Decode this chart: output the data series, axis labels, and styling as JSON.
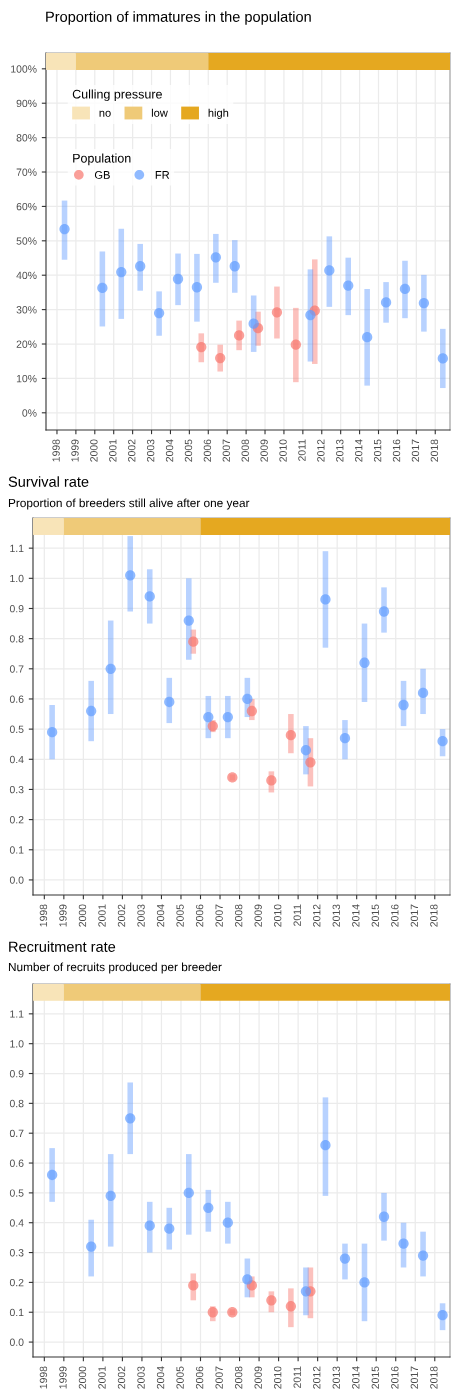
{
  "chart_data": [
    {
      "type": "scatter",
      "title": "Proportion of immatures in the population",
      "legend": "top left",
      "legend_title": "Population",
      "annotations": [
        "Culling pressure"
      ],
      "grid": true,
      "marker": "circle",
      "xlim": [
        1997.42,
        2018.78
      ],
      "xticks": [
        1998,
        1999,
        2000,
        2001,
        2002,
        2003,
        2004,
        2005,
        2006,
        2007,
        2008,
        2009,
        2010,
        2011,
        2012,
        2013,
        2014,
        2015,
        2016,
        2017,
        2018
      ],
      "ylim": [
        -5,
        104.6
      ],
      "yticks": [
        {
          "value": 0,
          "label": "0%"
        },
        {
          "value": 10,
          "label": "10%"
        },
        {
          "value": 20,
          "label": "20%"
        },
        {
          "value": 30,
          "label": "30%"
        },
        {
          "value": 40,
          "label": "40%"
        },
        {
          "value": 50,
          "label": "50%"
        },
        {
          "value": 60,
          "label": "60%"
        },
        {
          "value": 70,
          "label": "70%"
        },
        {
          "value": 80,
          "label": "80%"
        },
        {
          "value": 90,
          "label": "90%"
        },
        {
          "value": 100,
          "label": "100%"
        }
      ],
      "bands": [
        {
          "axis": "x",
          "from": 1997.42,
          "to": 1999,
          "label": "no",
          "color": "#f8e4b8"
        },
        {
          "axis": "x",
          "from": 1999,
          "to": 2006,
          "label": "low",
          "color": "#efca78"
        },
        {
          "axis": "x",
          "from": 2006,
          "to": 2018.78,
          "label": "high",
          "color": "#e5a820"
        }
      ],
      "series": [
        {
          "name": "GB",
          "color": "#f8766d",
          "x": [
            2005.63,
            2006.63,
            2007.63,
            2008.63,
            2009.63,
            2010.63,
            2011.63
          ],
          "values": [
            19.1,
            15.9,
            22.5,
            24.6,
            29.2,
            19.8,
            29.7
          ],
          "errors": [
            [
              14.7,
              23.1
            ],
            [
              12.0,
              19.8
            ],
            [
              18.2,
              26.8
            ],
            [
              19.5,
              29.4
            ],
            [
              21.6,
              36.7
            ],
            [
              8.9,
              30.5
            ],
            [
              14.2,
              44.6
            ]
          ]
        },
        {
          "name": "FR",
          "color": "#619cff",
          "x": [
            1998.4,
            2000.4,
            2001.4,
            2002.4,
            2003.4,
            2004.4,
            2005.4,
            2006.4,
            2007.4,
            2008.4,
            2011.4,
            2012.4,
            2013.4,
            2014.4,
            2015.4,
            2016.4,
            2017.4,
            2018.4
          ],
          "values": [
            53.4,
            36.3,
            40.9,
            42.6,
            29.0,
            38.9,
            36.5,
            45.2,
            42.6,
            25.9,
            28.4,
            41.4,
            37.0,
            22.0,
            32.1,
            36.0,
            31.9,
            15.8
          ],
          "errors": [
            [
              44.5,
              61.7
            ],
            [
              25.1,
              46.9
            ],
            [
              27.3,
              53.5
            ],
            [
              35.5,
              49.1
            ],
            [
              22.4,
              35.3
            ],
            [
              31.3,
              46.3
            ],
            [
              26.5,
              46.2
            ],
            [
              37.8,
              52.0
            ],
            [
              34.9,
              50.2
            ],
            [
              17.7,
              34.1
            ],
            [
              14.9,
              41.7
            ],
            [
              30.8,
              51.3
            ],
            [
              28.4,
              45.1
            ],
            [
              7.9,
              36.0
            ],
            [
              26.2,
              38.0
            ],
            [
              27.5,
              44.2
            ],
            [
              23.6,
              40.1
            ],
            [
              7.2,
              24.4
            ]
          ]
        }
      ]
    },
    {
      "type": "scatter",
      "title": "Survival rate",
      "subtitle": "Proportion of breeders still alive after one year",
      "grid": true,
      "marker": "circle",
      "xlim": [
        1997.42,
        2018.78
      ],
      "xticks": [
        1998,
        1999,
        2000,
        2001,
        2002,
        2003,
        2004,
        2005,
        2006,
        2007,
        2008,
        2009,
        2010,
        2011,
        2012,
        2013,
        2014,
        2015,
        2016,
        2017,
        2018
      ],
      "ylim": [
        -0.05,
        1.2
      ],
      "yticks": [
        {
          "value": 0,
          "label": "0.0"
        },
        {
          "value": 0.1,
          "label": "0.1"
        },
        {
          "value": 0.2,
          "label": "0.2"
        },
        {
          "value": 0.3,
          "label": "0.3"
        },
        {
          "value": 0.4,
          "label": "0.4"
        },
        {
          "value": 0.5,
          "label": "0.5"
        },
        {
          "value": 0.6,
          "label": "0.6"
        },
        {
          "value": 0.7,
          "label": "0.7"
        },
        {
          "value": 0.8,
          "label": "0.8"
        },
        {
          "value": 0.9,
          "label": "0.9"
        },
        {
          "value": 1,
          "label": "1.0"
        },
        {
          "value": 1.1,
          "label": "1.1"
        }
      ],
      "bands": [
        {
          "axis": "x",
          "from": 1997.42,
          "to": 1999,
          "color": "#f8e4b8"
        },
        {
          "axis": "x",
          "from": 1999,
          "to": 2006,
          "color": "#efca78"
        },
        {
          "axis": "x",
          "from": 2006,
          "to": 2018.78,
          "color": "#e5a820"
        }
      ],
      "series": [
        {
          "color": "#f8766d",
          "x": [
            2005.63,
            2006.63,
            2007.63,
            2008.63,
            2009.63,
            2010.63,
            2011.63
          ],
          "values": [
            0.79,
            0.51,
            0.34,
            0.56,
            0.33,
            0.48,
            0.39
          ],
          "errors": [
            [
              0.75,
              0.83
            ],
            [
              0.49,
              0.53
            ],
            [
              0.33,
              0.35
            ],
            [
              0.53,
              0.6
            ],
            [
              0.29,
              0.36
            ],
            [
              0.42,
              0.55
            ],
            [
              0.31,
              0.47
            ]
          ]
        },
        {
          "color": "#619cff",
          "x": [
            1998.4,
            2000.4,
            2001.4,
            2002.4,
            2003.4,
            2004.4,
            2005.4,
            2006.4,
            2007.4,
            2008.4,
            2011.4,
            2012.4,
            2013.4,
            2014.4,
            2015.4,
            2016.4,
            2017.4,
            2018.4
          ],
          "values": [
            0.49,
            0.56,
            0.7,
            1.01,
            0.94,
            0.59,
            0.86,
            0.54,
            0.54,
            0.6,
            0.43,
            0.93,
            0.47,
            0.72,
            0.89,
            0.58,
            0.62,
            0.46
          ],
          "errors": [
            [
              0.4,
              0.58
            ],
            [
              0.46,
              0.66
            ],
            [
              0.55,
              0.86
            ],
            [
              0.89,
              1.14
            ],
            [
              0.85,
              1.03
            ],
            [
              0.52,
              0.67
            ],
            [
              0.73,
              1.0
            ],
            [
              0.47,
              0.61
            ],
            [
              0.47,
              0.61
            ],
            [
              0.54,
              0.67
            ],
            [
              0.35,
              0.51
            ],
            [
              0.77,
              1.09
            ],
            [
              0.4,
              0.53
            ],
            [
              0.59,
              0.85
            ],
            [
              0.82,
              0.97
            ],
            [
              0.51,
              0.66
            ],
            [
              0.55,
              0.7
            ],
            [
              0.41,
              0.5
            ]
          ]
        }
      ]
    },
    {
      "type": "scatter",
      "title": "Recruitment rate",
      "subtitle": "Number of recruits produced per breeder",
      "grid": true,
      "marker": "circle",
      "xlim": [
        1997.42,
        2018.78
      ],
      "xticks": [
        1998,
        1999,
        2000,
        2001,
        2002,
        2003,
        2004,
        2005,
        2006,
        2007,
        2008,
        2009,
        2010,
        2011,
        2012,
        2013,
        2014,
        2015,
        2016,
        2017,
        2018
      ],
      "ylim": [
        -0.05,
        1.2
      ],
      "yticks": [
        {
          "value": 0,
          "label": "0.0"
        },
        {
          "value": 0.1,
          "label": "0.1"
        },
        {
          "value": 0.2,
          "label": "0.2"
        },
        {
          "value": 0.3,
          "label": "0.3"
        },
        {
          "value": 0.4,
          "label": "0.4"
        },
        {
          "value": 0.5,
          "label": "0.5"
        },
        {
          "value": 0.6,
          "label": "0.6"
        },
        {
          "value": 0.7,
          "label": "0.7"
        },
        {
          "value": 0.8,
          "label": "0.8"
        },
        {
          "value": 0.9,
          "label": "0.9"
        },
        {
          "value": 1,
          "label": "1.0"
        },
        {
          "value": 1.1,
          "label": "1.1"
        }
      ],
      "bands": [
        {
          "axis": "x",
          "from": 1997.42,
          "to": 1999,
          "color": "#f8e4b8"
        },
        {
          "axis": "x",
          "from": 1999,
          "to": 2006,
          "color": "#efca78"
        },
        {
          "axis": "x",
          "from": 2006,
          "to": 2018.78,
          "color": "#e5a820"
        }
      ],
      "series": [
        {
          "color": "#f8766d",
          "x": [
            2005.63,
            2006.63,
            2007.63,
            2008.63,
            2009.63,
            2010.63,
            2011.63
          ],
          "values": [
            0.19,
            0.1,
            0.1,
            0.19,
            0.14,
            0.12,
            0.17
          ],
          "errors": [
            [
              0.14,
              0.23
            ],
            [
              0.07,
              0.12
            ],
            [
              0.09,
              0.11
            ],
            [
              0.15,
              0.22
            ],
            [
              0.1,
              0.17
            ],
            [
              0.05,
              0.18
            ],
            [
              0.08,
              0.25
            ]
          ]
        },
        {
          "color": "#619cff",
          "x": [
            1998.4,
            2000.4,
            2001.4,
            2002.4,
            2003.4,
            2004.4,
            2005.4,
            2006.4,
            2007.4,
            2008.4,
            2011.4,
            2012.4,
            2013.4,
            2014.4,
            2015.4,
            2016.4,
            2017.4,
            2018.4
          ],
          "values": [
            0.56,
            0.32,
            0.49,
            0.75,
            0.39,
            0.38,
            0.5,
            0.45,
            0.4,
            0.21,
            0.17,
            0.66,
            0.28,
            0.2,
            0.42,
            0.33,
            0.29,
            0.09
          ],
          "errors": [
            [
              0.47,
              0.65
            ],
            [
              0.22,
              0.41
            ],
            [
              0.32,
              0.63
            ],
            [
              0.63,
              0.87
            ],
            [
              0.3,
              0.47
            ],
            [
              0.31,
              0.45
            ],
            [
              0.36,
              0.63
            ],
            [
              0.37,
              0.51
            ],
            [
              0.33,
              0.47
            ],
            [
              0.15,
              0.28
            ],
            [
              0.09,
              0.25
            ],
            [
              0.49,
              0.82
            ],
            [
              0.21,
              0.33
            ],
            [
              0.07,
              0.33
            ],
            [
              0.34,
              0.5
            ],
            [
              0.25,
              0.4
            ],
            [
              0.22,
              0.37
            ],
            [
              0.04,
              0.13
            ]
          ]
        }
      ]
    }
  ]
}
